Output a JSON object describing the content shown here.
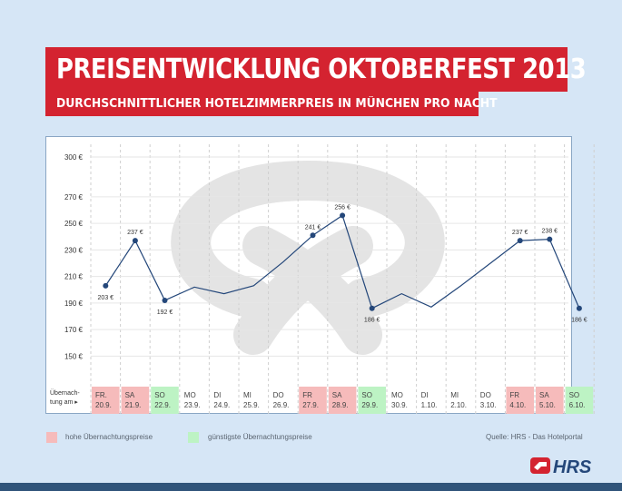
{
  "title": "PREISENTWICKLUNG OKTOBERFEST 2013",
  "subtitle": "DURCHSCHNITTLICHER HOTELZIMMERPREIS IN MÜNCHEN PRO NACHT",
  "colors": {
    "brand_red": "#d42330",
    "line": "#24477a",
    "high_price_bg": "#f6bbbb",
    "low_price_bg": "#bdf3c4",
    "grid": "#cfcfcf",
    "background": "#d6e6f6"
  },
  "row_label": "Übernach-tung am",
  "legend": {
    "high": "hohe Übernachtungspreise",
    "low": "günstigste Übernachtungspreise"
  },
  "source": "Quelle: HRS - Das Hotelportal",
  "logo_text": "HRS",
  "watermark": "pretzel",
  "chart_data": {
    "type": "line",
    "title": "PREISENTWICKLUNG OKTOBERFEST 2013",
    "subtitle": "DURCHSCHNITTLICHER HOTELZIMMERPREIS IN MÜNCHEN PRO NACHT",
    "ylim": [
      140,
      300
    ],
    "yticks": [
      300,
      270,
      250,
      230,
      210,
      190,
      170,
      150
    ],
    "ytick_labels": [
      "300 €",
      "270 €",
      "250 €",
      "230 €",
      "210 €",
      "190 €",
      "170 €",
      "150 €"
    ],
    "grid": true,
    "days": [
      {
        "day": "FR.",
        "date": "20.9.",
        "value": 203,
        "label": "203 €",
        "highlight": "high"
      },
      {
        "day": "SA",
        "date": "21.9.",
        "value": 237,
        "label": "237 €",
        "highlight": "high"
      },
      {
        "day": "SO",
        "date": "22.9.",
        "value": 192,
        "label": "192 €",
        "highlight": "low"
      },
      {
        "day": "MO",
        "date": "23.9.",
        "value": 202,
        "label": "",
        "highlight": ""
      },
      {
        "day": "DI",
        "date": "24.9.",
        "value": 197,
        "label": "",
        "highlight": ""
      },
      {
        "day": "MI",
        "date": "25.9.",
        "value": 203,
        "label": "",
        "highlight": ""
      },
      {
        "day": "DO",
        "date": "26.9.",
        "value": 221,
        "label": "",
        "highlight": ""
      },
      {
        "day": "FR",
        "date": "27.9.",
        "value": 241,
        "label": "241 €",
        "highlight": "high"
      },
      {
        "day": "SA",
        "date": "28.9.",
        "value": 256,
        "label": "256 €",
        "highlight": "high"
      },
      {
        "day": "SO",
        "date": "29.9.",
        "value": 186,
        "label": "186 €",
        "highlight": "low"
      },
      {
        "day": "MO",
        "date": "30.9.",
        "value": 197,
        "label": "",
        "highlight": ""
      },
      {
        "day": "DI",
        "date": "1.10.",
        "value": 187,
        "label": "",
        "highlight": ""
      },
      {
        "day": "MI",
        "date": "2.10.",
        "value": 203,
        "label": "",
        "highlight": ""
      },
      {
        "day": "DO",
        "date": "3.10.",
        "value": 220,
        "label": "",
        "highlight": ""
      },
      {
        "day": "FR",
        "date": "4.10.",
        "value": 237,
        "label": "237 €",
        "highlight": "high"
      },
      {
        "day": "SA",
        "date": "5.10.",
        "value": 238,
        "label": "238 €",
        "highlight": "high"
      },
      {
        "day": "SO",
        "date": "6.10.",
        "value": 186,
        "label": "186 €",
        "highlight": "low"
      }
    ]
  }
}
